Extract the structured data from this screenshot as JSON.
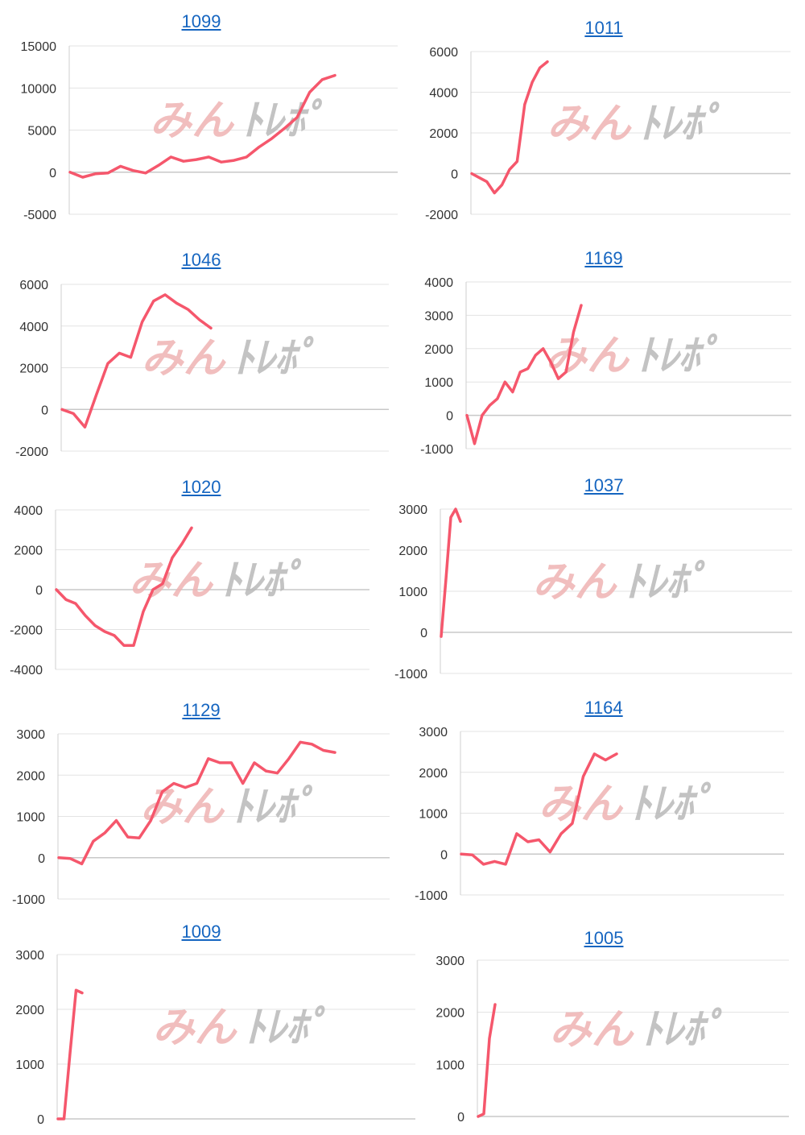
{
  "colors": {
    "line": "#f5576c",
    "grid": "#e3e3e3",
    "axis": "#cfcfcf",
    "title_link": "#1565c0",
    "watermark_pink": "#efb3b3",
    "watermark_gray": "#b9b9b9"
  },
  "watermark": {
    "left_text": "みん",
    "right_text": "ﾄﾚﾎﾟ"
  },
  "chart_data": [
    {
      "type": "line",
      "title": "1099",
      "ylim": [
        -5000,
        15000
      ],
      "yticks": [
        "15000",
        "10000",
        "5000",
        "0",
        "-5000"
      ],
      "grid": true,
      "series": [
        {
          "values": [
            0,
            -600,
            -200,
            -100,
            700,
            200,
            -100,
            800,
            1800,
            1300,
            1500,
            1800,
            1200,
            1400,
            1800,
            3000,
            4000,
            5200,
            6500,
            9500,
            11000,
            11500
          ]
        }
      ]
    },
    {
      "type": "line",
      "title": "1011",
      "ylim": [
        -2000,
        6000
      ],
      "yticks": [
        "6000",
        "4000",
        "2000",
        "0",
        "-2000"
      ],
      "grid": true,
      "series": [
        {
          "values": [
            0,
            -200,
            -400,
            -950,
            -550,
            200,
            600,
            3400,
            4500,
            5200,
            5500
          ]
        }
      ]
    },
    {
      "type": "line",
      "title": "1046",
      "ylim": [
        -2000,
        6000
      ],
      "yticks": [
        "6000",
        "4000",
        "2000",
        "0",
        "-2000"
      ],
      "grid": true,
      "series": [
        {
          "values": [
            0,
            -200,
            -850,
            700,
            2200,
            2700,
            2500,
            4200,
            5200,
            5500,
            5100,
            4800,
            4300,
            3900
          ]
        }
      ]
    },
    {
      "type": "line",
      "title": "1169",
      "ylim": [
        -1000,
        4000
      ],
      "yticks": [
        "4000",
        "3000",
        "2000",
        "1000",
        "0",
        "-1000"
      ],
      "grid": true,
      "series": [
        {
          "values": [
            0,
            -850,
            0,
            300,
            500,
            1000,
            700,
            1300,
            1400,
            1800,
            2000,
            1600,
            1100,
            1300,
            2500,
            3300
          ]
        }
      ]
    },
    {
      "type": "line",
      "title": "1020",
      "ylim": [
        -4000,
        4000
      ],
      "yticks": [
        "4000",
        "2000",
        "0",
        "-2000",
        "-4000"
      ],
      "grid": true,
      "series": [
        {
          "values": [
            0,
            -500,
            -700,
            -1300,
            -1800,
            -2100,
            -2300,
            -2800,
            -2800,
            -1100,
            0,
            300,
            1600,
            2300,
            3100
          ]
        }
      ]
    },
    {
      "type": "line",
      "title": "1037",
      "ylim": [
        -1000,
        3000
      ],
      "yticks": [
        "3000",
        "2000",
        "1000",
        "0",
        "-1000"
      ],
      "grid": true,
      "series": [
        {
          "values": [
            -100,
            1300,
            2800,
            3000,
            2700
          ]
        }
      ]
    },
    {
      "type": "line",
      "title": "1129",
      "ylim": [
        -1000,
        3000
      ],
      "yticks": [
        "3000",
        "2000",
        "1000",
        "0",
        "-1000"
      ],
      "grid": true,
      "series": [
        {
          "values": [
            0,
            -20,
            -150,
            400,
            600,
            900,
            500,
            480,
            900,
            1600,
            1800,
            1700,
            1800,
            2400,
            2300,
            2300,
            1800,
            2300,
            2100,
            2050,
            2400,
            2800,
            2750,
            2600,
            2550
          ]
        }
      ]
    },
    {
      "type": "line",
      "title": "1164",
      "ylim": [
        -1000,
        3000
      ],
      "yticks": [
        "3000",
        "2000",
        "1000",
        "0",
        "-1000"
      ],
      "grid": true,
      "series": [
        {
          "values": [
            0,
            -20,
            -250,
            -180,
            -250,
            500,
            300,
            350,
            50,
            500,
            750,
            1900,
            2450,
            2300,
            2450
          ]
        }
      ]
    },
    {
      "type": "line",
      "title": "1009",
      "ylim": [
        0,
        3000
      ],
      "yticks": [
        "3000",
        "2000",
        "1000",
        "0"
      ],
      "grid": true,
      "series": [
        {
          "values": [
            0,
            0,
            1200,
            2350,
            2300
          ]
        }
      ]
    },
    {
      "type": "line",
      "title": "1005",
      "ylim": [
        0,
        3000
      ],
      "yticks": [
        "3000",
        "2000",
        "1000",
        "0"
      ],
      "grid": true,
      "series": [
        {
          "values": [
            0,
            50,
            1500,
            2150
          ]
        }
      ]
    }
  ]
}
